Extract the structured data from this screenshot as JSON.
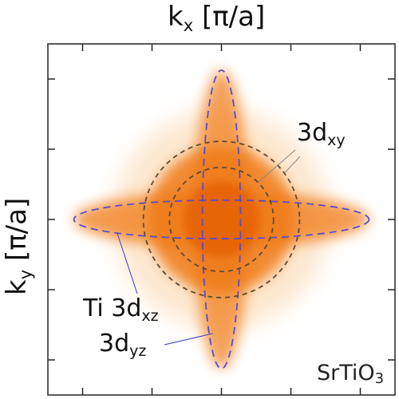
{
  "chart_data": {
    "type": "heatmap",
    "xlabel": {
      "main": "k",
      "sub": "x",
      "unit": " [π/a]"
    },
    "ylabel": {
      "main": "k",
      "sub": "y",
      "unit": " [π/a]"
    },
    "sample": {
      "pre": "SrTiO",
      "sub": "3"
    },
    "annotations": {
      "xy": {
        "main": "3d",
        "sub": "xy"
      },
      "xz": {
        "main": "Ti 3d",
        "sub": "xz"
      },
      "yz": {
        "main": "3d",
        "sub": "yz"
      }
    },
    "xlim": [
      -1,
      1
    ],
    "ylim": [
      -1,
      1
    ],
    "ticks": [
      -0.8,
      -0.4,
      0,
      0.4,
      0.8
    ],
    "fermi_surfaces": {
      "xy_circles": [
        {
          "name": "inner",
          "radius": 0.3
        },
        {
          "name": "outer",
          "radius": 0.45
        }
      ],
      "xz_ellipse": {
        "semi_x": 0.85,
        "semi_y": 0.11
      },
      "yz_ellipse": {
        "semi_x": 0.11,
        "semi_y": 0.85
      }
    },
    "colors": {
      "intensity": "#f07a12",
      "intensity_core": "#e35b00",
      "dashed_elongated": "#5a4cc8",
      "dashed_circles": "#5b4a3a",
      "leader_lines": "#3a3acf"
    }
  }
}
